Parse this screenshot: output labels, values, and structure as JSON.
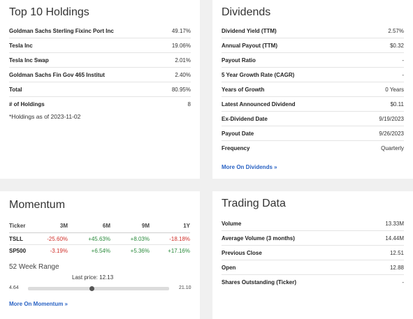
{
  "top_holdings": {
    "title": "Top 10 Holdings",
    "rows": [
      {
        "label": "Goldman Sachs Sterling Fixinc Port Inc",
        "value": "49.17%"
      },
      {
        "label": "Tesla Inc",
        "value": "19.06%"
      },
      {
        "label": "Tesla Inc Swap",
        "value": "2.01%"
      },
      {
        "label": "Goldman Sachs Fin Gov 465 Institut",
        "value": "2.40%"
      },
      {
        "label": "Total",
        "value": "80.95%"
      },
      {
        "label": "# of Holdings",
        "value": "8"
      }
    ],
    "note": "*Holdings as of 2023-11-02"
  },
  "dividends": {
    "title": "Dividends",
    "rows": [
      {
        "label": "Dividend Yield (TTM)",
        "value": "2.57%"
      },
      {
        "label": "Annual Payout (TTM)",
        "value": "$0.32"
      },
      {
        "label": "Payout Ratio",
        "value": "-"
      },
      {
        "label": "5 Year Growth Rate (CAGR)",
        "value": "-"
      },
      {
        "label": "Years of Growth",
        "value": "0 Years"
      },
      {
        "label": "Latest Announced Dividend",
        "value": "$0.11"
      },
      {
        "label": "Ex-Dividend Date",
        "value": "9/19/2023"
      },
      {
        "label": "Payout Date",
        "value": "9/26/2023"
      },
      {
        "label": "Frequency",
        "value": "Quarterly"
      }
    ],
    "more_link": "More On Dividends »"
  },
  "momentum": {
    "title": "Momentum",
    "headers": [
      "Ticker",
      "3M",
      "6M",
      "9M",
      "1Y"
    ],
    "rows": [
      {
        "ticker": "TSLL",
        "values": [
          "-25.60%",
          "+45.63%",
          "+8.03%",
          "-18.18%"
        ],
        "signs": [
          "neg",
          "pos",
          "pos",
          "neg"
        ]
      },
      {
        "ticker": "SP500",
        "values": [
          "-3.19%",
          "+6.54%",
          "+5.36%",
          "+17.16%"
        ],
        "signs": [
          "neg",
          "pos",
          "pos",
          "pos"
        ]
      }
    ],
    "range": {
      "title": "52 Week Range",
      "last_price_label": "Last price: 12.13",
      "low": "4.64",
      "high": "21.10",
      "low_value": 4.64,
      "high_value": 21.1,
      "last_value": 12.13
    },
    "more_link": "More On Momentum »"
  },
  "trading": {
    "title": "Trading Data",
    "rows": [
      {
        "label": "Volume",
        "value": "13.33M"
      },
      {
        "label": "Average Volume (3 months)",
        "value": "14.44M"
      },
      {
        "label": "Previous Close",
        "value": "12.51"
      },
      {
        "label": "Open",
        "value": "12.88"
      },
      {
        "label": "Shares Outstanding (Ticker)",
        "value": "-"
      }
    ]
  },
  "colors": {
    "link": "#2a63c4",
    "negative": "#d0302a",
    "positive": "#2a8a3c"
  }
}
